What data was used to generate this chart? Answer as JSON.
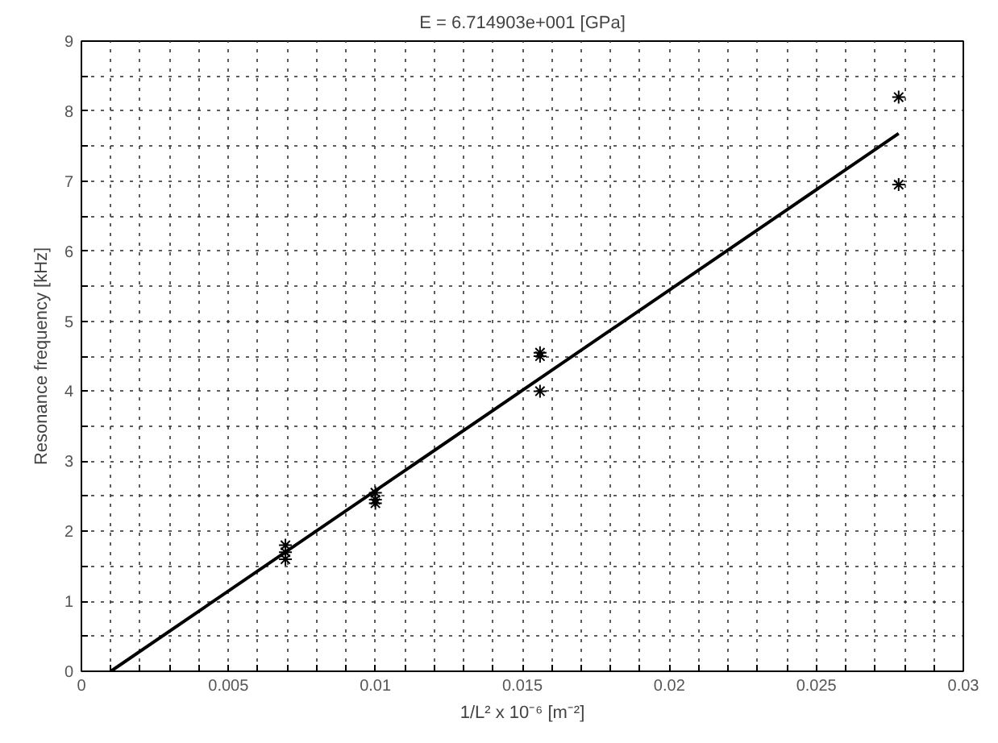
{
  "chart_data": {
    "type": "scatter",
    "title": "E = 6.714903e+001 [GPa]",
    "xlabel": "1/L² x 10⁻⁶ [m⁻²]",
    "ylabel": "Resonance frequency [kHz]",
    "xlim": [
      0,
      0.03
    ],
    "ylim": [
      0,
      9
    ],
    "xticks": [
      0,
      {
        "value": 0.001,
        "label": null
      },
      {
        "value": 0.002,
        "label": null
      },
      {
        "value": 0.003,
        "label": null
      },
      {
        "value": 0.004,
        "label": null
      },
      0.005,
      {
        "value": 0.006,
        "label": null
      },
      {
        "value": 0.007,
        "label": null
      },
      {
        "value": 0.008,
        "label": null
      },
      {
        "value": 0.009,
        "label": null
      },
      0.01,
      {
        "value": 0.011,
        "label": null
      },
      {
        "value": 0.012,
        "label": null
      },
      {
        "value": 0.013,
        "label": null
      },
      {
        "value": 0.014,
        "label": null
      },
      0.015,
      {
        "value": 0.016,
        "label": null
      },
      {
        "value": 0.017,
        "label": null
      },
      {
        "value": 0.018,
        "label": null
      },
      {
        "value": 0.019,
        "label": null
      },
      0.02,
      {
        "value": 0.021,
        "label": null
      },
      {
        "value": 0.022,
        "label": null
      },
      {
        "value": 0.023,
        "label": null
      },
      {
        "value": 0.024,
        "label": null
      },
      0.025,
      {
        "value": 0.026,
        "label": null
      },
      {
        "value": 0.027,
        "label": null
      },
      {
        "value": 0.028,
        "label": null
      },
      {
        "value": 0.029,
        "label": null
      },
      0.03
    ],
    "yticks": [
      0,
      {
        "value": 0.5,
        "label": null
      },
      1,
      {
        "value": 1.5,
        "label": null
      },
      2,
      {
        "value": 2.5,
        "label": null
      },
      3,
      {
        "value": 3.5,
        "label": null
      },
      4,
      {
        "value": 4.5,
        "label": null
      },
      5,
      {
        "value": 5.5,
        "label": null
      },
      6,
      {
        "value": 6.5,
        "label": null
      },
      7,
      {
        "value": 7.5,
        "label": null
      },
      8,
      {
        "value": 8.5,
        "label": null
      },
      9
    ],
    "grid": true,
    "series": [
      {
        "marker": "cross",
        "color": "#000000",
        "x": [
          0.00694,
          0.00694,
          0.00694,
          0.01,
          0.01,
          0.01,
          0.0156,
          0.0156,
          0.0156,
          0.0278,
          0.0278
        ],
        "values": [
          1.8,
          1.7,
          1.6,
          2.55,
          2.45,
          2.4,
          4.55,
          4.5,
          4.0,
          8.2,
          6.95
        ]
      },
      {
        "type": "line",
        "marker": "none",
        "color": "#000000",
        "x": [
          0.001,
          0.0278
        ],
        "values": [
          0,
          7.68
        ]
      }
    ]
  }
}
